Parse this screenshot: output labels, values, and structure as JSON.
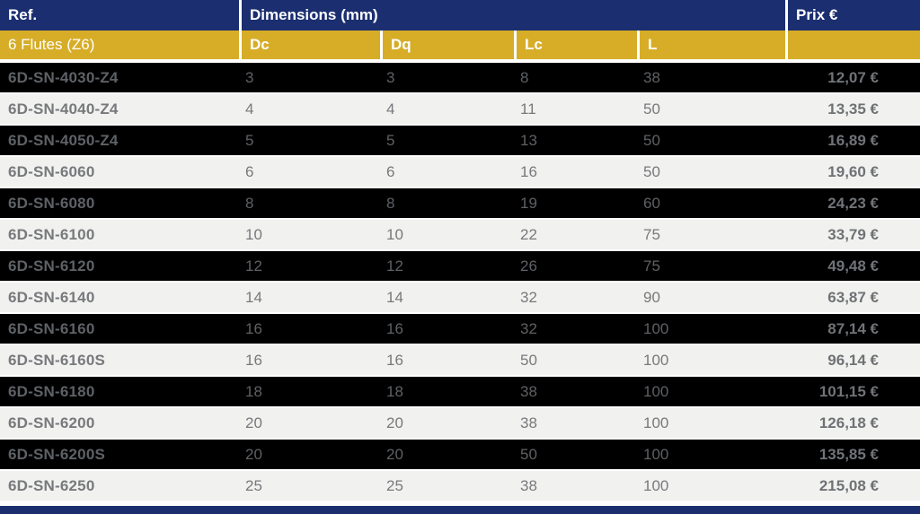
{
  "header": {
    "ref_label": "Ref.",
    "dimensions_label": "Dimensions (mm)",
    "prix_label": "Prix €",
    "subheader": {
      "flutes_label": "6 Flutes (Z6)",
      "dc_label": "Dc",
      "dq_label": "Dq",
      "lc_label": "Lc",
      "l_label": "L"
    }
  },
  "colors": {
    "navy": "#1b2e70",
    "gold": "#d7ad28",
    "row_dark_bg": "#000000",
    "row_light_bg": "#f1f1ef",
    "separator": "#ffffff",
    "dark_row_text": "#5e6165",
    "light_row_text": "#77797c",
    "header_text": "#ffffff"
  },
  "table": {
    "rows": [
      {
        "ref": "6D-SN-4030-Z4",
        "dc": "3",
        "dq": "3",
        "lc": "8",
        "l": "38",
        "prix": "12,07 €"
      },
      {
        "ref": "6D-SN-4040-Z4",
        "dc": "4",
        "dq": "4",
        "lc": "11",
        "l": "50",
        "prix": "13,35 €"
      },
      {
        "ref": "6D-SN-4050-Z4",
        "dc": "5",
        "dq": "5",
        "lc": "13",
        "l": "50",
        "prix": "16,89 €"
      },
      {
        "ref": "6D-SN-6060",
        "dc": "6",
        "dq": "6",
        "lc": "16",
        "l": "50",
        "prix": "19,60 €"
      },
      {
        "ref": "6D-SN-6080",
        "dc": "8",
        "dq": "8",
        "lc": "19",
        "l": "60",
        "prix": "24,23 €"
      },
      {
        "ref": "6D-SN-6100",
        "dc": "10",
        "dq": "10",
        "lc": "22",
        "l": "75",
        "prix": "33,79 €"
      },
      {
        "ref": "6D-SN-6120",
        "dc": "12",
        "dq": "12",
        "lc": "26",
        "l": "75",
        "prix": "49,48 €"
      },
      {
        "ref": "6D-SN-6140",
        "dc": "14",
        "dq": "14",
        "lc": "32",
        "l": "90",
        "prix": "63,87 €"
      },
      {
        "ref": "6D-SN-6160",
        "dc": "16",
        "dq": "16",
        "lc": "32",
        "l": "100",
        "prix": "87,14 €"
      },
      {
        "ref": "6D-SN-6160S",
        "dc": "16",
        "dq": "16",
        "lc": "50",
        "l": "100",
        "prix": "96,14 €"
      },
      {
        "ref": "6D-SN-6180",
        "dc": "18",
        "dq": "18",
        "lc": "38",
        "l": "100",
        "prix": "101,15 €"
      },
      {
        "ref": "6D-SN-6200",
        "dc": "20",
        "dq": "20",
        "lc": "38",
        "l": "100",
        "prix": "126,18 €"
      },
      {
        "ref": "6D-SN-6200S",
        "dc": "20",
        "dq": "20",
        "lc": "50",
        "l": "100",
        "prix": "135,85 €"
      },
      {
        "ref": "6D-SN-6250",
        "dc": "25",
        "dq": "25",
        "lc": "38",
        "l": "100",
        "prix": "215,08 €"
      }
    ]
  }
}
